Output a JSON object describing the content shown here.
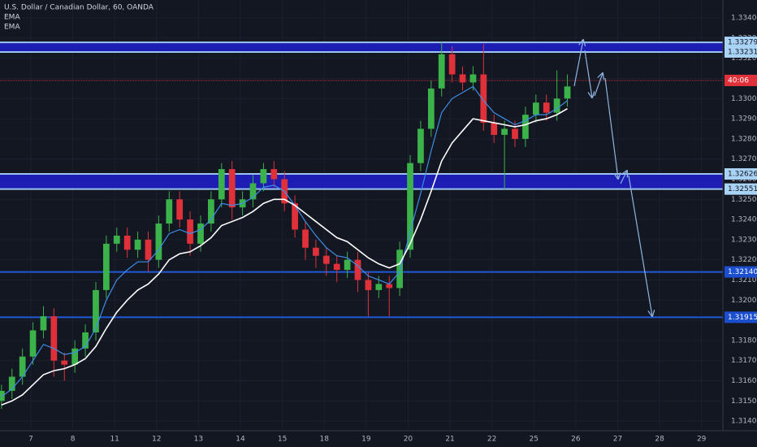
{
  "chart_data": {
    "type": "candlestick",
    "title": "U.S. Dollar / Canadian Dollar, 60, OANDA",
    "indicators": [
      "EMA",
      "EMA"
    ],
    "up_color": "#3bb34a",
    "down_color": "#e0303a",
    "xlim": [
      -0.736,
      16.51
    ],
    "xticks": [
      {
        "value": 0,
        "label": "7"
      },
      {
        "value": 1,
        "label": "8"
      },
      {
        "value": 2,
        "label": "11"
      },
      {
        "value": 3,
        "label": "12"
      },
      {
        "value": 4,
        "label": "13"
      },
      {
        "value": 5,
        "label": "14"
      },
      {
        "value": 6,
        "label": "15"
      },
      {
        "value": 7,
        "label": "18"
      },
      {
        "value": 8,
        "label": "19"
      },
      {
        "value": 9,
        "label": "20"
      },
      {
        "value": 10,
        "label": "21"
      },
      {
        "value": 11,
        "label": "22"
      },
      {
        "value": 12,
        "label": "25"
      },
      {
        "value": 13,
        "label": "26"
      },
      {
        "value": 14,
        "label": "27"
      },
      {
        "value": 15,
        "label": "28"
      },
      {
        "value": 16,
        "label": "29"
      }
    ],
    "ylim": [
      1.31352,
      1.33489
    ],
    "yticks": [
      {
        "value": 1.334,
        "label": "1.33400"
      },
      {
        "value": 1.333,
        "label": "1.33300"
      },
      {
        "value": 1.332,
        "label": "1.33200"
      },
      {
        "value": 1.331,
        "label": "1.33100"
      },
      {
        "value": 1.33,
        "label": "1.33000"
      },
      {
        "value": 1.329,
        "label": "1.32900"
      },
      {
        "value": 1.328,
        "label": "1.32800"
      },
      {
        "value": 1.327,
        "label": "1.32700"
      },
      {
        "value": 1.326,
        "label": "1.32600"
      },
      {
        "value": 1.325,
        "label": "1.32500"
      },
      {
        "value": 1.324,
        "label": "1.32400"
      },
      {
        "value": 1.323,
        "label": "1.32300"
      },
      {
        "value": 1.322,
        "label": "1.32200"
      },
      {
        "value": 1.321,
        "label": "1.32100"
      },
      {
        "value": 1.32,
        "label": "1.32000"
      },
      {
        "value": 1.319,
        "label": "1.31900"
      },
      {
        "value": 1.318,
        "label": "1.31800"
      },
      {
        "value": 1.317,
        "label": "1.31700"
      },
      {
        "value": 1.316,
        "label": "1.31600"
      },
      {
        "value": 1.315,
        "label": "1.31500"
      },
      {
        "value": 1.314,
        "label": "1.31400"
      }
    ],
    "grid": true,
    "x": [
      -0.7,
      -0.45,
      -0.2,
      0.05,
      0.3,
      0.55,
      0.8,
      1.05,
      1.3,
      1.55,
      1.8,
      2.05,
      2.3,
      2.55,
      2.8,
      3.05,
      3.3,
      3.55,
      3.8,
      4.05,
      4.3,
      4.55,
      4.8,
      5.05,
      5.3,
      5.55,
      5.8,
      6.05,
      6.3,
      6.55,
      6.8,
      7.05,
      7.3,
      7.55,
      7.8,
      8.05,
      8.3,
      8.55,
      8.8,
      9.05,
      9.3,
      9.55,
      9.8,
      10.05,
      10.3,
      10.55,
      10.8,
      11.05,
      11.3,
      11.55,
      11.8,
      12.05,
      12.3,
      12.55,
      12.8
    ],
    "ohlc": [
      [
        1.315,
        1.3158,
        1.3146,
        1.3155
      ],
      [
        1.3155,
        1.3166,
        1.3151,
        1.3162
      ],
      [
        1.3162,
        1.3176,
        1.3158,
        1.3172
      ],
      [
        1.3172,
        1.3189,
        1.3168,
        1.3185
      ],
      [
        1.3185,
        1.3197,
        1.3181,
        1.3192
      ],
      [
        1.3192,
        1.3196,
        1.3162,
        1.317
      ],
      [
        1.317,
        1.3174,
        1.316,
        1.3168
      ],
      [
        1.3168,
        1.318,
        1.3164,
        1.3176
      ],
      [
        1.3176,
        1.3188,
        1.3172,
        1.3184
      ],
      [
        1.3184,
        1.3209,
        1.318,
        1.3205
      ],
      [
        1.3205,
        1.3232,
        1.3201,
        1.3228
      ],
      [
        1.3228,
        1.3236,
        1.3224,
        1.3232
      ],
      [
        1.3232,
        1.3236,
        1.3221,
        1.3225
      ],
      [
        1.3225,
        1.3234,
        1.3221,
        1.323
      ],
      [
        1.323,
        1.3234,
        1.3214,
        1.322
      ],
      [
        1.322,
        1.3242,
        1.3216,
        1.3238
      ],
      [
        1.3238,
        1.3254,
        1.3234,
        1.325
      ],
      [
        1.325,
        1.3254,
        1.3236,
        1.324
      ],
      [
        1.324,
        1.3244,
        1.3222,
        1.3228
      ],
      [
        1.3228,
        1.3242,
        1.3224,
        1.3238
      ],
      [
        1.3238,
        1.3254,
        1.3234,
        1.325
      ],
      [
        1.325,
        1.3268,
        1.3246,
        1.3265
      ],
      [
        1.3265,
        1.3269,
        1.324,
        1.3246
      ],
      [
        1.3246,
        1.3254,
        1.3242,
        1.325
      ],
      [
        1.325,
        1.3262,
        1.3246,
        1.3258
      ],
      [
        1.3258,
        1.3268,
        1.3254,
        1.3265
      ],
      [
        1.3265,
        1.3269,
        1.3256,
        1.326
      ],
      [
        1.326,
        1.3264,
        1.3244,
        1.3248
      ],
      [
        1.3248,
        1.3252,
        1.3231,
        1.3235
      ],
      [
        1.3235,
        1.3239,
        1.322,
        1.3226
      ],
      [
        1.3226,
        1.323,
        1.3216,
        1.3222
      ],
      [
        1.3222,
        1.3226,
        1.3212,
        1.3218
      ],
      [
        1.3218,
        1.3222,
        1.3209,
        1.3215
      ],
      [
        1.3215,
        1.3224,
        1.3211,
        1.322
      ],
      [
        1.322,
        1.3224,
        1.3204,
        1.321
      ],
      [
        1.321,
        1.3214,
        1.3192,
        1.3205
      ],
      [
        1.3205,
        1.3212,
        1.3201,
        1.3208
      ],
      [
        1.3208,
        1.3212,
        1.3192,
        1.3206
      ],
      [
        1.3206,
        1.3229,
        1.3202,
        1.3225
      ],
      [
        1.3225,
        1.3272,
        1.3221,
        1.3268
      ],
      [
        1.3268,
        1.3289,
        1.3264,
        1.3285
      ],
      [
        1.3285,
        1.3309,
        1.3281,
        1.3305
      ],
      [
        1.3305,
        1.3328,
        1.3301,
        1.3322
      ],
      [
        1.3322,
        1.3326,
        1.3308,
        1.3312
      ],
      [
        1.3312,
        1.3316,
        1.3304,
        1.3308
      ],
      [
        1.3308,
        1.3316,
        1.3304,
        1.3312
      ],
      [
        1.3312,
        1.3327,
        1.3284,
        1.3288
      ],
      [
        1.3288,
        1.3292,
        1.3278,
        1.3282
      ],
      [
        1.3282,
        1.3289,
        1.3255,
        1.3285
      ],
      [
        1.3285,
        1.3289,
        1.3276,
        1.328
      ],
      [
        1.328,
        1.3296,
        1.3276,
        1.3292
      ],
      [
        1.3292,
        1.3302,
        1.3288,
        1.3298
      ],
      [
        1.3298,
        1.3302,
        1.3289,
        1.3293
      ],
      [
        1.3293,
        1.3314,
        1.3289,
        1.33
      ],
      [
        1.33,
        1.3312,
        1.3296,
        1.3306
      ]
    ],
    "series": [
      {
        "name": "EMA",
        "color": "#3d8ee8",
        "values": [
          1.3152,
          1.3156,
          1.3162,
          1.317,
          1.3178,
          1.3176,
          1.3173,
          1.3174,
          1.3177,
          1.3186,
          1.32,
          1.321,
          1.3215,
          1.3219,
          1.3219,
          1.3225,
          1.3233,
          1.3235,
          1.3233,
          1.3235,
          1.324,
          1.3248,
          1.3247,
          1.3248,
          1.3251,
          1.3256,
          1.3257,
          1.3254,
          1.3247,
          1.3239,
          1.3232,
          1.3226,
          1.3222,
          1.3221,
          1.3217,
          1.3212,
          1.321,
          1.3208,
          1.3214,
          1.3234,
          1.3253,
          1.3274,
          1.3293,
          1.33,
          1.3303,
          1.3306,
          1.3299,
          1.3293,
          1.329,
          1.3287,
          1.3289,
          1.3292,
          1.3292,
          1.3295,
          1.3299
        ]
      },
      {
        "name": "EMA",
        "color": "#ffffff",
        "values": [
          1.3148,
          1.315,
          1.3153,
          1.3158,
          1.3163,
          1.3165,
          1.3166,
          1.3168,
          1.3171,
          1.3177,
          1.3186,
          1.3194,
          1.32,
          1.3205,
          1.3208,
          1.3213,
          1.322,
          1.3223,
          1.3224,
          1.3227,
          1.3231,
          1.3237,
          1.3239,
          1.3241,
          1.3244,
          1.3248,
          1.325,
          1.325,
          1.3247,
          1.3243,
          1.3239,
          1.3235,
          1.3231,
          1.3229,
          1.3225,
          1.3221,
          1.3218,
          1.3216,
          1.3218,
          1.3228,
          1.324,
          1.3254,
          1.3269,
          1.3278,
          1.3284,
          1.329,
          1.3289,
          1.3288,
          1.3287,
          1.3286,
          1.3287,
          1.3289,
          1.329,
          1.3292,
          1.3295
        ]
      }
    ],
    "zones": [
      {
        "upper": {
          "value": 1.33279,
          "label": "1.33279"
        },
        "lower": {
          "value": 1.33231,
          "label": "1.33231"
        }
      },
      {
        "upper": {
          "value": 1.32626,
          "label": "1.32626"
        },
        "lower": {
          "value": 1.32551,
          "label": "1.32551"
        }
      }
    ],
    "levels": [
      {
        "value": 1.3214,
        "label": "1.32140"
      },
      {
        "value": 1.31915,
        "label": "1.31915"
      }
    ],
    "price_line": {
      "value": 1.3309,
      "label": "40:06"
    }
  }
}
